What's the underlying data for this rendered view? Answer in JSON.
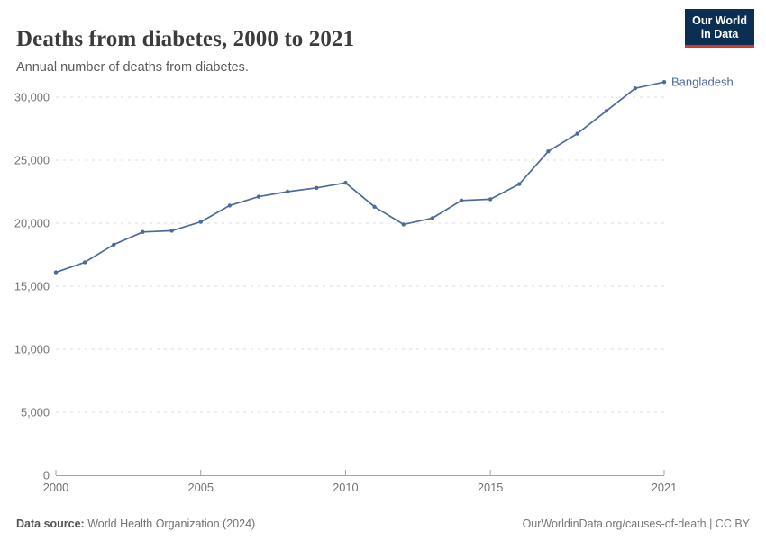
{
  "header": {
    "logo": {
      "line1": "Our World",
      "line2": "in Data"
    }
  },
  "footer": {
    "source_label": "Data source:",
    "source_value": "World Health Organization (2024)",
    "attribution": "OurWorldinData.org/causes-of-death | CC BY"
  },
  "colors": {
    "line": "#4c6a9c",
    "grid": "#dedede",
    "axis": "#a3a3a3",
    "tick_label": "#737373",
    "logo_bg": "#0d2e53",
    "logo_red": "#cf3b29",
    "title": "#3b3b3b",
    "subtitle": "#5b5b5b"
  },
  "chart_data": {
    "type": "line",
    "title": "Deaths from diabetes, 2000 to 2021",
    "subtitle": "Annual number of deaths from diabetes.",
    "x": [
      2000,
      2001,
      2002,
      2003,
      2004,
      2005,
      2006,
      2007,
      2008,
      2009,
      2010,
      2011,
      2012,
      2013,
      2014,
      2015,
      2016,
      2017,
      2018,
      2019,
      2020,
      2021
    ],
    "series": [
      {
        "name": "Bangladesh",
        "color": "#4c6a9c",
        "values": [
          16100,
          16900,
          18300,
          19300,
          19400,
          20100,
          21400,
          22100,
          22500,
          22800,
          23200,
          21300,
          19900,
          20400,
          21800,
          21900,
          23100,
          25700,
          27100,
          28900,
          30700,
          31200
        ]
      }
    ],
    "xlim": [
      2000,
      2021
    ],
    "ylim": [
      0,
      30000
    ],
    "xticks": [
      2000,
      2005,
      2010,
      2015,
      2021
    ],
    "yticks": [
      0,
      5000,
      10000,
      15000,
      20000,
      25000,
      30000
    ],
    "grid": "horizontal-dashed",
    "legend": "entity-label-at-line-end"
  }
}
